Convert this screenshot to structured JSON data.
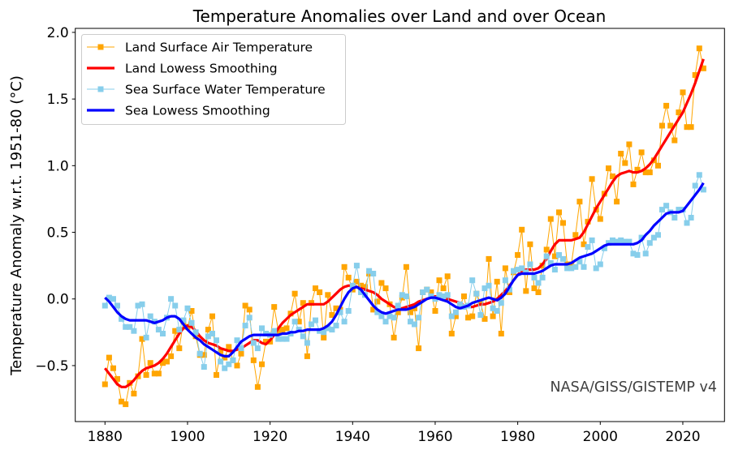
{
  "chart_data": {
    "type": "line",
    "title": "Temperature Anomalies over Land and over Ocean",
    "xlabel": "",
    "ylabel": "Temperature Anomaly w.r.t. 1951-80 (°C)",
    "xlim": [
      1872.8,
      2030.1
    ],
    "ylim": [
      -0.92,
      2.03
    ],
    "grid": false,
    "legend_position": "top-left",
    "annotation": "NASA/GISS/GISTEMP v4",
    "annotation_position": "bottom-right",
    "x_ticks": [
      1880,
      1900,
      1920,
      1940,
      1960,
      1980,
      2000,
      2020
    ],
    "x_tick_labels": [
      "1880",
      "1900",
      "1920",
      "1940",
      "1960",
      "1980",
      "2000",
      "2020"
    ],
    "y_ticks": [
      -0.5,
      0.0,
      0.5,
      1.0,
      1.5,
      2.0
    ],
    "y_tick_labels": [
      "−0.5",
      "0.0",
      "0.5",
      "1.0",
      "1.5",
      "2.0"
    ],
    "x_start": 1880,
    "series": [
      {
        "name": "Land Surface Air Temperature",
        "color": "#FFA500",
        "style": "line-square-markers",
        "values": [
          -0.64,
          -0.44,
          -0.52,
          -0.6,
          -0.77,
          -0.79,
          -0.63,
          -0.71,
          -0.58,
          -0.3,
          -0.57,
          -0.48,
          -0.56,
          -0.56,
          -0.48,
          -0.47,
          -0.43,
          -0.24,
          -0.37,
          -0.17,
          -0.21,
          -0.09,
          -0.28,
          -0.42,
          -0.42,
          -0.23,
          -0.13,
          -0.57,
          -0.39,
          -0.44,
          -0.36,
          -0.46,
          -0.5,
          -0.41,
          -0.05,
          -0.08,
          -0.46,
          -0.66,
          -0.49,
          -0.32,
          -0.32,
          -0.06,
          -0.24,
          -0.23,
          -0.22,
          -0.11,
          0.04,
          -0.17,
          -0.03,
          -0.43,
          -0.03,
          0.08,
          0.05,
          -0.29,
          0.03,
          -0.12,
          -0.07,
          -0.08,
          0.24,
          0.16,
          0.07,
          0.13,
          0.1,
          0.09,
          0.19,
          -0.08,
          -0.02,
          0.12,
          0.08,
          -0.04,
          -0.29,
          -0.1,
          0.01,
          0.24,
          -0.1,
          -0.07,
          -0.37,
          0.05,
          0.07,
          0.05,
          -0.09,
          0.14,
          0.08,
          0.17,
          -0.26,
          -0.13,
          -0.05,
          0.02,
          -0.14,
          -0.13,
          0.04,
          -0.03,
          -0.15,
          0.3,
          -0.13,
          0.13,
          -0.26,
          0.23,
          0.05,
          0.2,
          0.33,
          0.52,
          0.06,
          0.41,
          0.08,
          0.05,
          0.25,
          0.37,
          0.6,
          0.32,
          0.65,
          0.57,
          0.26,
          0.26,
          0.48,
          0.73,
          0.41,
          0.58,
          0.9,
          0.67,
          0.6,
          0.79,
          0.98,
          0.92,
          0.73,
          1.09,
          1.02,
          1.16,
          0.86,
          0.97,
          1.1,
          0.95,
          0.95,
          1.04,
          1.0,
          1.3,
          1.45,
          1.3,
          1.19,
          1.4,
          1.55,
          1.29,
          1.29,
          1.68,
          1.88,
          1.73
        ]
      },
      {
        "name": "Land Lowess Smoothing",
        "color": "#FF0000",
        "style": "thick-line",
        "values": [
          -0.52,
          -0.56,
          -0.6,
          -0.64,
          -0.66,
          -0.66,
          -0.64,
          -0.61,
          -0.57,
          -0.54,
          -0.52,
          -0.51,
          -0.5,
          -0.48,
          -0.45,
          -0.41,
          -0.36,
          -0.31,
          -0.26,
          -0.22,
          -0.2,
          -0.21,
          -0.24,
          -0.28,
          -0.31,
          -0.33,
          -0.34,
          -0.35,
          -0.37,
          -0.38,
          -0.39,
          -0.39,
          -0.38,
          -0.37,
          -0.35,
          -0.33,
          -0.31,
          -0.31,
          -0.33,
          -0.34,
          -0.31,
          -0.27,
          -0.22,
          -0.18,
          -0.15,
          -0.12,
          -0.1,
          -0.08,
          -0.06,
          -0.04,
          -0.04,
          -0.04,
          -0.04,
          -0.04,
          -0.02,
          0.01,
          0.04,
          0.07,
          0.09,
          0.1,
          0.1,
          0.09,
          0.08,
          0.07,
          0.06,
          0.05,
          0.03,
          0.0,
          -0.02,
          -0.04,
          -0.06,
          -0.07,
          -0.07,
          -0.06,
          -0.05,
          -0.04,
          -0.02,
          -0.01,
          0.0,
          0.01,
          0.02,
          0.01,
          0.0,
          0.0,
          -0.01,
          -0.02,
          -0.03,
          -0.05,
          -0.06,
          -0.06,
          -0.05,
          -0.04,
          -0.04,
          -0.03,
          -0.02,
          0.0,
          0.03,
          0.06,
          0.1,
          0.14,
          0.18,
          0.21,
          0.22,
          0.22,
          0.22,
          0.23,
          0.26,
          0.3,
          0.36,
          0.41,
          0.44,
          0.44,
          0.44,
          0.44,
          0.45,
          0.46,
          0.5,
          0.56,
          0.62,
          0.68,
          0.73,
          0.78,
          0.83,
          0.88,
          0.92,
          0.94,
          0.95,
          0.96,
          0.95,
          0.95,
          0.96,
          0.98,
          1.01,
          1.05,
          1.1,
          1.15,
          1.2,
          1.25,
          1.3,
          1.35,
          1.4,
          1.47,
          1.54,
          1.62,
          1.71,
          1.8
        ]
      },
      {
        "name": "Sea Surface Water Temperature",
        "color": "#87CEEB",
        "style": "line-square-markers",
        "values": [
          -0.05,
          0.01,
          0.0,
          -0.05,
          -0.15,
          -0.21,
          -0.21,
          -0.24,
          -0.05,
          -0.04,
          -0.29,
          -0.13,
          -0.17,
          -0.23,
          -0.26,
          -0.14,
          0.0,
          -0.05,
          -0.23,
          -0.16,
          -0.07,
          -0.18,
          -0.25,
          -0.41,
          -0.51,
          -0.28,
          -0.26,
          -0.31,
          -0.47,
          -0.52,
          -0.49,
          -0.46,
          -0.31,
          -0.37,
          -0.2,
          -0.14,
          -0.33,
          -0.37,
          -0.22,
          -0.26,
          -0.27,
          -0.24,
          -0.3,
          -0.3,
          -0.3,
          -0.26,
          -0.17,
          -0.23,
          -0.28,
          -0.33,
          -0.19,
          -0.16,
          -0.24,
          -0.25,
          -0.22,
          -0.23,
          -0.2,
          -0.1,
          -0.17,
          -0.09,
          0.1,
          0.25,
          0.05,
          0.03,
          0.21,
          0.19,
          -0.1,
          -0.13,
          -0.17,
          -0.13,
          -0.14,
          -0.05,
          0.03,
          0.02,
          -0.17,
          -0.19,
          -0.14,
          0.05,
          0.07,
          0.02,
          0.0,
          0.03,
          0.02,
          0.03,
          -0.13,
          -0.1,
          -0.04,
          -0.06,
          -0.05,
          0.14,
          0.04,
          -0.12,
          0.08,
          0.1,
          -0.07,
          -0.09,
          -0.03,
          0.14,
          0.07,
          0.21,
          0.22,
          0.23,
          0.2,
          0.26,
          0.16,
          0.12,
          0.16,
          0.32,
          0.27,
          0.22,
          0.33,
          0.3,
          0.23,
          0.23,
          0.24,
          0.28,
          0.24,
          0.39,
          0.44,
          0.23,
          0.26,
          0.38,
          0.42,
          0.44,
          0.43,
          0.44,
          0.43,
          0.43,
          0.34,
          0.33,
          0.46,
          0.34,
          0.42,
          0.46,
          0.48,
          0.67,
          0.7,
          0.65,
          0.61,
          0.67,
          0.67,
          0.57,
          0.61,
          0.85,
          0.93,
          0.82
        ]
      },
      {
        "name": "Sea Lowess Smoothing",
        "color": "#0000FF",
        "style": "thick-line",
        "values": [
          0.01,
          -0.02,
          -0.06,
          -0.1,
          -0.13,
          -0.15,
          -0.16,
          -0.16,
          -0.16,
          -0.16,
          -0.16,
          -0.17,
          -0.18,
          -0.17,
          -0.16,
          -0.14,
          -0.13,
          -0.13,
          -0.15,
          -0.19,
          -0.23,
          -0.26,
          -0.29,
          -0.31,
          -0.34,
          -0.36,
          -0.38,
          -0.4,
          -0.42,
          -0.43,
          -0.43,
          -0.4,
          -0.36,
          -0.32,
          -0.3,
          -0.28,
          -0.27,
          -0.27,
          -0.27,
          -0.27,
          -0.27,
          -0.27,
          -0.27,
          -0.26,
          -0.26,
          -0.25,
          -0.25,
          -0.24,
          -0.24,
          -0.23,
          -0.23,
          -0.23,
          -0.23,
          -0.22,
          -0.2,
          -0.17,
          -0.12,
          -0.06,
          0.0,
          0.05,
          0.08,
          0.09,
          0.07,
          0.03,
          -0.01,
          -0.05,
          -0.08,
          -0.1,
          -0.11,
          -0.1,
          -0.09,
          -0.08,
          -0.08,
          -0.08,
          -0.07,
          -0.06,
          -0.04,
          -0.02,
          0.0,
          0.01,
          0.01,
          0.0,
          -0.01,
          -0.02,
          -0.04,
          -0.06,
          -0.07,
          -0.06,
          -0.05,
          -0.03,
          -0.02,
          -0.01,
          0.0,
          0.01,
          0.0,
          -0.01,
          0.01,
          0.04,
          0.09,
          0.14,
          0.18,
          0.19,
          0.19,
          0.19,
          0.19,
          0.2,
          0.21,
          0.23,
          0.25,
          0.26,
          0.26,
          0.26,
          0.26,
          0.27,
          0.29,
          0.31,
          0.32,
          0.33,
          0.34,
          0.36,
          0.38,
          0.4,
          0.41,
          0.41,
          0.41,
          0.41,
          0.41,
          0.41,
          0.41,
          0.42,
          0.44,
          0.48,
          0.51,
          0.55,
          0.58,
          0.61,
          0.64,
          0.65,
          0.65,
          0.65,
          0.66,
          0.7,
          0.74,
          0.78,
          0.82,
          0.87
        ]
      }
    ]
  }
}
